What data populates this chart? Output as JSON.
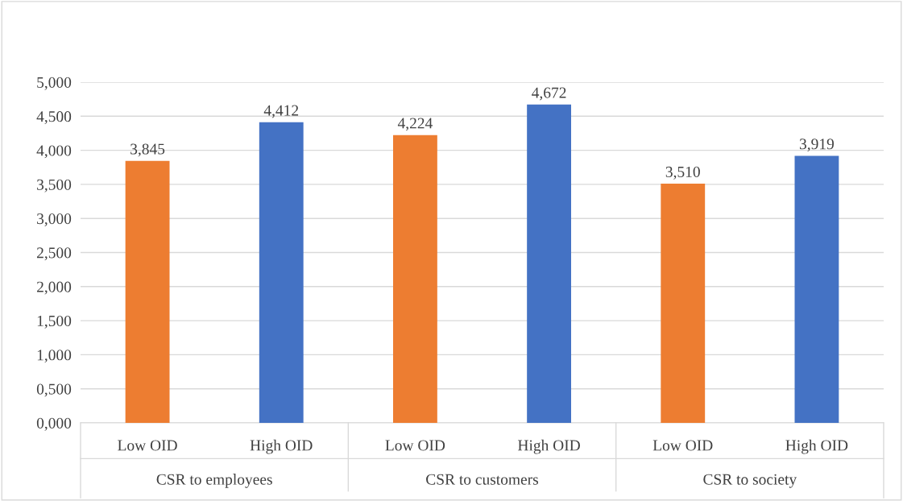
{
  "chart_data": {
    "type": "bar",
    "categories": [
      "Low OID",
      "High OID",
      "Low OID",
      "High OID",
      "Low OID",
      "High OID"
    ],
    "values": [
      3.845,
      4.412,
      4.224,
      4.672,
      3.51,
      3.919
    ],
    "colors": [
      "#ed7d31",
      "#4472c4",
      "#ed7d31",
      "#4472c4",
      "#ed7d31",
      "#4472c4"
    ],
    "value_labels": [
      "3,845",
      "4,412",
      "4,224",
      "4,672",
      "3,510",
      "3,919"
    ],
    "annotations": [
      "CSR to employees",
      "CSR to customers",
      "CSR to society"
    ],
    "ylim": [
      0,
      5
    ],
    "yticks": [
      {
        "value": 0,
        "label": "0,000"
      },
      {
        "value": 0.5,
        "label": "0,500"
      },
      {
        "value": 1,
        "label": "1,000"
      },
      {
        "value": 1.5,
        "label": "1,500"
      },
      {
        "value": 2,
        "label": "2,000"
      },
      {
        "value": 2.5,
        "label": "2,500"
      },
      {
        "value": 3,
        "label": "3,000"
      },
      {
        "value": 3.5,
        "label": "3,500"
      },
      {
        "value": 4,
        "label": "4,000"
      },
      {
        "value": 4.5,
        "label": "4,500"
      },
      {
        "value": 5,
        "label": "5,000"
      }
    ],
    "grid": "y"
  }
}
